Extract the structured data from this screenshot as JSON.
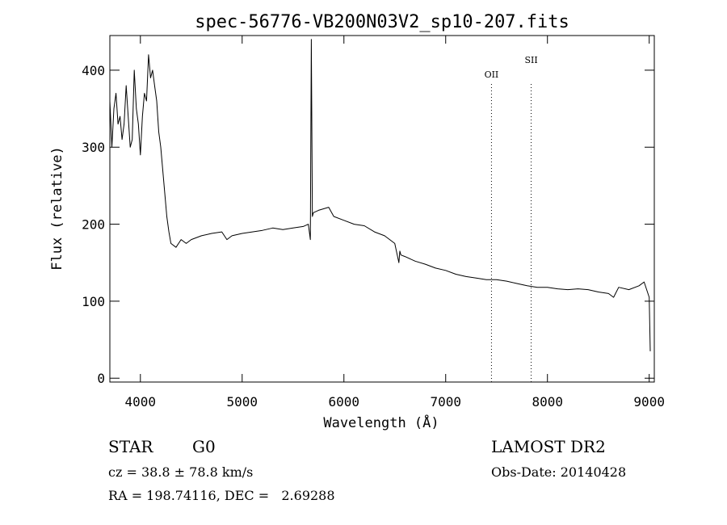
{
  "chart_data": {
    "type": "line",
    "title": "spec-56776-VB200N03V2_sp10-207.fits",
    "xlabel": "Wavelength (Å)",
    "ylabel": "Flux (relative)",
    "xlim": [
      3700,
      9050
    ],
    "ylim": [
      -5,
      445
    ],
    "x_ticks": [
      4000,
      5000,
      6000,
      7000,
      8000,
      9000
    ],
    "y_ticks": [
      0,
      100,
      200,
      300,
      400
    ],
    "grid": false,
    "series": [
      {
        "style": "black-line",
        "x": [
          3700,
          3720,
          3740,
          3760,
          3780,
          3800,
          3820,
          3840,
          3860,
          3880,
          3900,
          3920,
          3940,
          3960,
          3980,
          4000,
          4020,
          4040,
          4060,
          4080,
          4100,
          4120,
          4140,
          4160,
          4180,
          4200,
          4220,
          4240,
          4260,
          4280,
          4300,
          4350,
          4400,
          4450,
          4500,
          4600,
          4700,
          4800,
          4850,
          4900,
          5000,
          5100,
          5200,
          5300,
          5400,
          5500,
          5600,
          5650,
          5670,
          5680,
          5690,
          5700,
          5750,
          5800,
          5850,
          5900,
          6000,
          6100,
          6200,
          6300,
          6400,
          6500,
          6540,
          6550,
          6560,
          6600,
          6700,
          6800,
          6900,
          7000,
          7100,
          7200,
          7300,
          7400,
          7500,
          7600,
          7700,
          7800,
          7900,
          8000,
          8100,
          8200,
          8300,
          8400,
          8500,
          8600,
          8650,
          8700,
          8800,
          8900,
          8950,
          9000,
          9010
        ],
        "y": [
          360,
          300,
          350,
          370,
          330,
          340,
          310,
          330,
          380,
          340,
          300,
          310,
          400,
          350,
          330,
          290,
          340,
          370,
          360,
          420,
          390,
          400,
          380,
          360,
          320,
          300,
          270,
          240,
          210,
          190,
          175,
          170,
          180,
          175,
          180,
          185,
          188,
          190,
          180,
          185,
          188,
          190,
          192,
          195,
          193,
          195,
          197,
          200,
          180,
          440,
          210,
          215,
          218,
          220,
          222,
          210,
          205,
          200,
          198,
          190,
          185,
          175,
          150,
          165,
          160,
          158,
          152,
          148,
          143,
          140,
          135,
          132,
          130,
          128,
          128,
          126,
          123,
          120,
          118,
          118,
          116,
          115,
          116,
          115,
          112,
          110,
          105,
          118,
          115,
          120,
          125,
          105,
          35
        ]
      }
    ],
    "annotations": [
      {
        "label": "OII",
        "x": 7450
      },
      {
        "label": "SII",
        "x": 7840
      }
    ]
  },
  "info": {
    "star_type": "STAR",
    "subclass": "G0",
    "survey": "LAMOST DR2",
    "cz": "cz = 38.8 ± 78.8 km/s",
    "obs_date": "Obs-Date: 20140428",
    "coords": "RA = 198.74116, DEC =   2.69288"
  }
}
